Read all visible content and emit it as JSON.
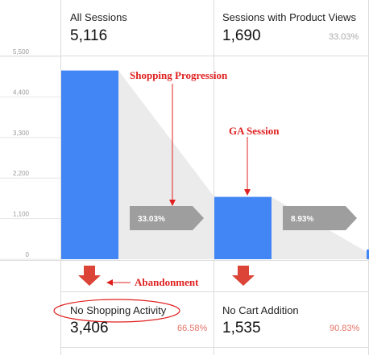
{
  "tiles": [
    {
      "title": "All Sessions",
      "value": "5,116",
      "pct": ""
    },
    {
      "title": "Sessions with Product Views",
      "value": "1,690",
      "pct": "33.03%"
    }
  ],
  "abandon_tiles": [
    {
      "title": "No Shopping Activity",
      "value": "3,406",
      "pct": "66.58%"
    },
    {
      "title": "No Cart Addition",
      "value": "1,535",
      "pct": "90.83%"
    }
  ],
  "annotations": {
    "shopping_progression": "Shopping Progression",
    "ga_session": "GA Session",
    "abandonment": "Abandonment"
  },
  "colors": {
    "bar": "#4285f4",
    "flow_arrow": "#9e9e9e",
    "down_arrow": "#db4437",
    "annotation": "#e02020"
  },
  "chart_data": {
    "type": "bar",
    "categories": [
      "All Sessions",
      "Sessions with Product Views"
    ],
    "values": [
      5116,
      1690
    ],
    "ylim": [
      0,
      5500
    ],
    "yticks": [
      {
        "value": 0,
        "label": "0"
      },
      {
        "value": 1100,
        "label": "1,100"
      },
      {
        "value": 2200,
        "label": "2,200"
      },
      {
        "value": 3300,
        "label": "3,300"
      },
      {
        "value": 4400,
        "label": "4,400"
      },
      {
        "value": 5500,
        "label": "5,500"
      }
    ],
    "progression_labels": [
      "33.03%",
      "8.93%"
    ]
  }
}
